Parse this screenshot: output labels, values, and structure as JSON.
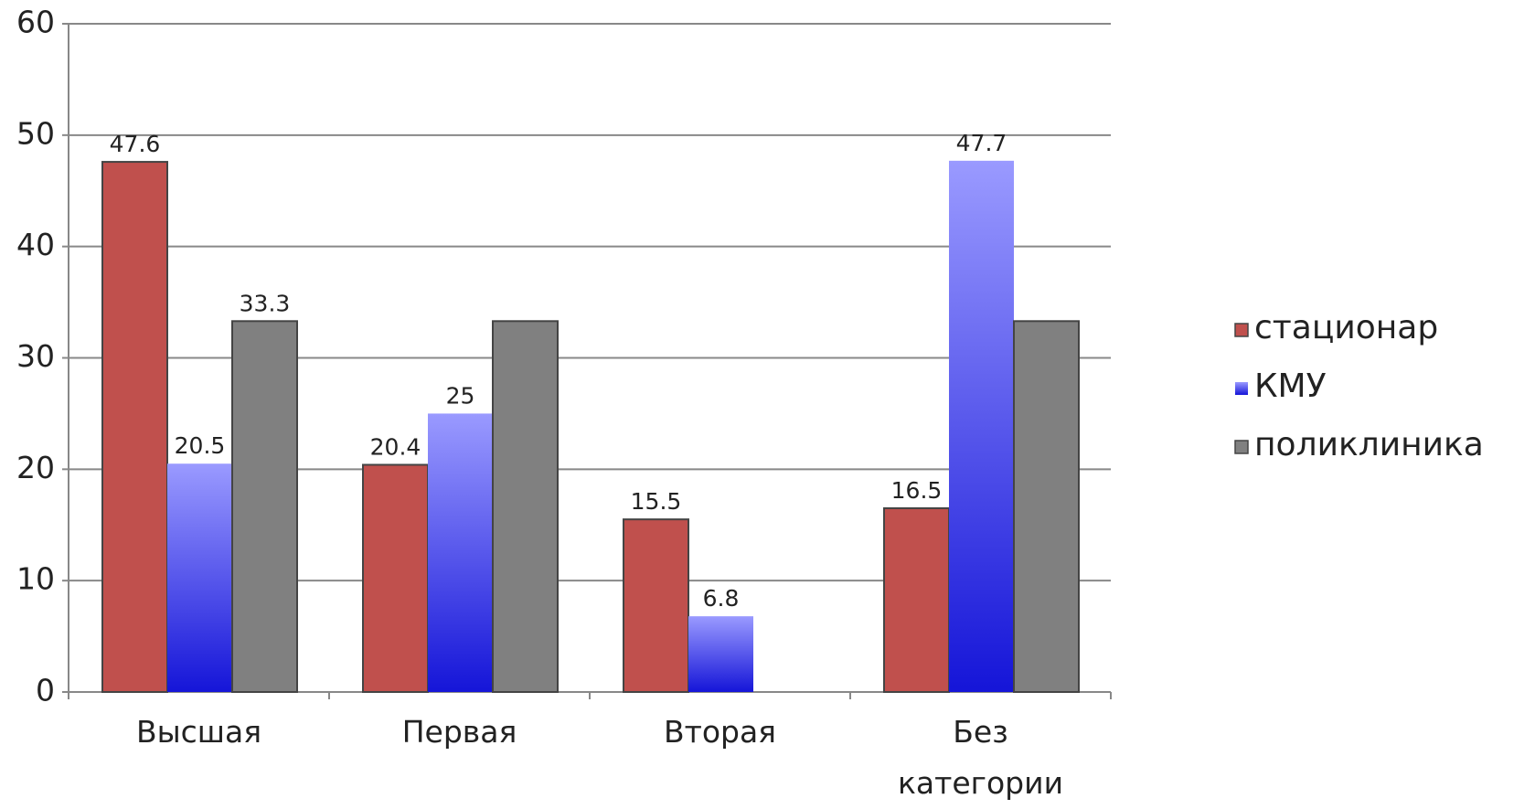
{
  "chart_data": {
    "type": "bar",
    "categories": [
      "Высшая",
      "Первая",
      "Вторая",
      "Без категории"
    ],
    "series": [
      {
        "name": "стационар",
        "color": "#c0504d",
        "values": [
          47.6,
          20.4,
          15.5,
          16.5
        ],
        "show_labels": [
          true,
          true,
          true,
          true
        ]
      },
      {
        "name": "КМУ",
        "color": "#2020e0",
        "gradient": [
          "#9a9aff",
          "#1515d8"
        ],
        "values": [
          20.5,
          25,
          6.8,
          47.7
        ],
        "show_labels": [
          true,
          true,
          true,
          true
        ]
      },
      {
        "name": "поликлиника",
        "color": "#808080",
        "values": [
          33.3,
          33.3,
          0,
          33.3
        ],
        "show_labels": [
          true,
          false,
          false,
          false
        ]
      }
    ],
    "ylim": [
      0,
      60
    ],
    "yticks": [
      0,
      10,
      20,
      30,
      40,
      50,
      60
    ],
    "grid": true,
    "legend": "right"
  }
}
